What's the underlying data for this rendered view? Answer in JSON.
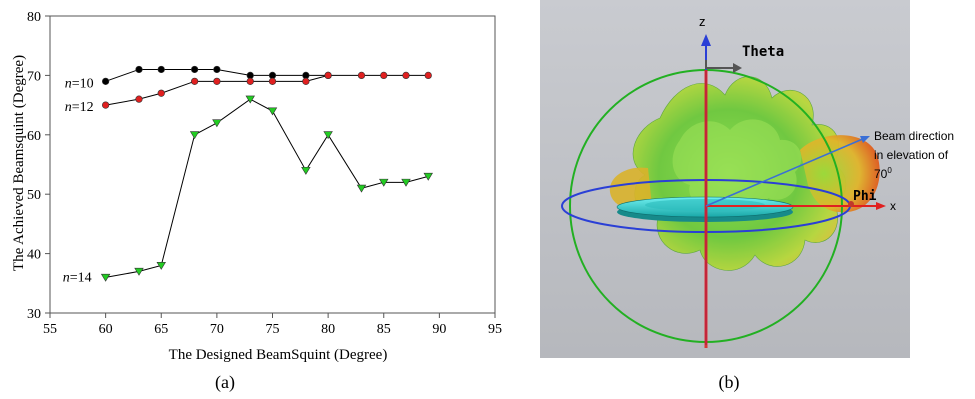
{
  "chart_data": {
    "type": "line",
    "xlabel": "The Designed BeamSquint (Degree)",
    "ylabel": "The Achieved Beamsquint (Degree)",
    "xlim": [
      55,
      95
    ],
    "ylim": [
      30,
      80
    ],
    "xticks": [
      "55",
      "60",
      "65",
      "70",
      "75",
      "80",
      "85",
      "90",
      "95"
    ],
    "yticks": [
      "30",
      "40",
      "50",
      "60",
      "70",
      "80"
    ],
    "grid": false,
    "series": [
      {
        "name": "n=10",
        "label_prefix": "n",
        "label_suffix": "=10",
        "color": "#000000",
        "marker": "circle",
        "x": [
          60,
          63,
          65,
          68,
          70,
          73,
          75,
          78,
          80
        ],
        "y": [
          69,
          71,
          71,
          71,
          71,
          70,
          70,
          70,
          70
        ]
      },
      {
        "name": "n=12",
        "label_prefix": "n",
        "label_suffix": "=12",
        "color": "#e02020",
        "marker": "circle",
        "x": [
          60,
          63,
          65,
          68,
          70,
          73,
          75,
          78,
          80,
          83,
          85,
          87,
          89
        ],
        "y": [
          65,
          66,
          67,
          69,
          69,
          69,
          69,
          69,
          70,
          70,
          70,
          70,
          70
        ]
      },
      {
        "name": "n=14",
        "label_prefix": "n",
        "label_suffix": "=14",
        "color": "#22cc22",
        "marker": "triangle-down",
        "x": [
          60,
          63,
          65,
          68,
          70,
          73,
          75,
          78,
          80,
          83,
          85,
          87,
          89
        ],
        "y": [
          36,
          37,
          38,
          60,
          62,
          66,
          64,
          54,
          60,
          51,
          52,
          52,
          53
        ]
      }
    ]
  },
  "panel_a": {
    "caption": "(a)"
  },
  "panel_b": {
    "caption": "(b)",
    "axis_z": "z",
    "axis_x": "x",
    "label_theta": "Theta",
    "label_phi": "Phi",
    "annotation": {
      "line1": "Beam direction",
      "line2": "in elevation of",
      "line3_value": "70",
      "line3_sup": "0"
    },
    "colors": {
      "background": "#bfc1c6",
      "sphere_ring": "#22b022",
      "equator_ring": "#2a3fd6",
      "z_axis": "#2a3fd6",
      "x_axis": "#e02020",
      "pattern_core": "#7ed23a",
      "pattern_edge": "#e04a1a",
      "disc": "#3fd8d8"
    }
  }
}
